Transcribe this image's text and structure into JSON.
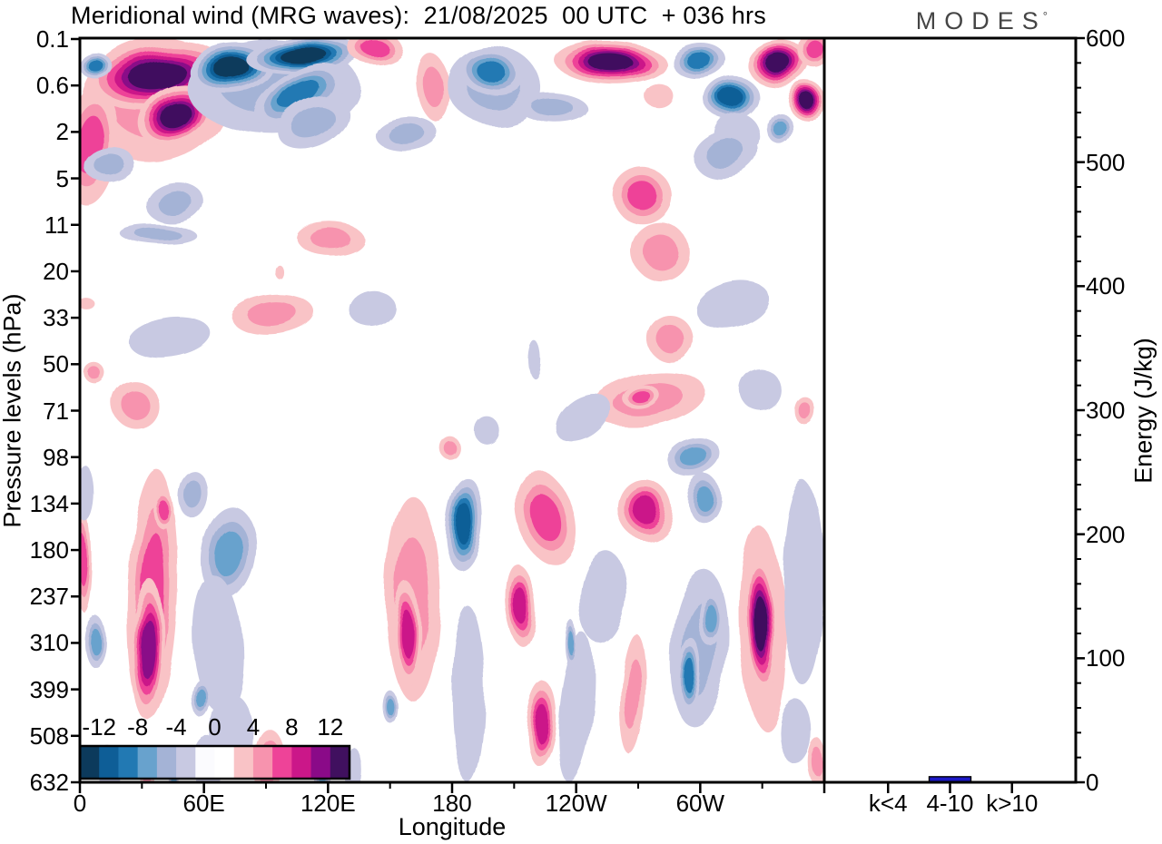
{
  "header": {
    "title": "Meridional wind (MRG waves):  21/08/2025  00 UTC  + 036 hrs",
    "logo": "MODES",
    "logo_mark": "°"
  },
  "axes": {
    "pressure": {
      "label": "Pressure levels (hPa)",
      "ticks": [
        "0.1",
        "0.6",
        "2",
        "5",
        "11",
        "20",
        "33",
        "50",
        "71",
        "98",
        "134",
        "180",
        "237",
        "310",
        "399",
        "508",
        "632"
      ]
    },
    "longitude": {
      "label": "Longitude",
      "major_ticks": [
        "0",
        "60E",
        "120E",
        "180",
        "120W",
        "60W"
      ],
      "major_interval_deg": 60,
      "minor_interval_deg": 30,
      "range_deg": [
        0,
        360
      ]
    },
    "energy": {
      "label": "Energy (J/kg)",
      "ticks": [
        "0",
        "100",
        "200",
        "300",
        "400",
        "500",
        "600"
      ],
      "major_interval": 100,
      "minor_interval": 20,
      "range": [
        0,
        600
      ]
    }
  },
  "colorbar": {
    "tick_labels": [
      "-12",
      "-8",
      "-4",
      "0",
      "4",
      "8",
      "12"
    ],
    "bin_edges": [
      -14,
      -12,
      -10,
      -8,
      -6,
      -4,
      -2,
      0,
      2,
      4,
      6,
      8,
      10,
      12,
      14
    ],
    "colors": [
      "#0c3a5c",
      "#0e5e97",
      "#2279b3",
      "#68a2cd",
      "#a4b3d6",
      "#c8c9e2",
      "#fbfbfe",
      "#ffffff",
      "#f9c3c6",
      "#f793ae",
      "#ee4398",
      "#cb1789",
      "#8a0a88",
      "#40105f"
    ]
  },
  "chart_data": [
    {
      "type": "heatmap",
      "title": "Meridional wind (MRG waves): 21/08/2025 00 UTC + 036 hrs",
      "xlabel": "Longitude",
      "ylabel": "Pressure levels (hPa)",
      "x_range_deg": [
        0,
        360
      ],
      "pressure_levels_hPa": [
        0.1,
        0.6,
        2,
        5,
        11,
        20,
        33,
        50,
        71,
        98,
        134,
        180,
        237,
        310,
        399,
        508,
        632
      ],
      "contour_interval": 2,
      "value_range": [
        -14,
        14
      ],
      "grid": false,
      "feature_format": [
        "lon_deg",
        "level_index",
        "rx_deg",
        "ry_levels",
        "peak_value",
        "rotation_deg"
      ],
      "features": [
        [
          36.0,
          1.31,
          36.0,
          1.35,
          5,
          -10
        ],
        [
          5.3,
          2.29,
          13.0,
          1.3,
          6,
          5
        ],
        [
          36.9,
          0.76,
          34.0,
          0.72,
          12.5,
          -8
        ],
        [
          45.7,
          1.62,
          19.0,
          0.62,
          13.7,
          -25
        ],
        [
          7.5,
          0.57,
          8.0,
          0.28,
          -9,
          0
        ],
        [
          93.0,
          1.02,
          42.0,
          1.0,
          -4,
          0
        ],
        [
          73.3,
          0.63,
          21.0,
          0.55,
          -12.7,
          -5
        ],
        [
          108.4,
          0.37,
          28.0,
          0.38,
          -13.5,
          -4
        ],
        [
          106.2,
          1.21,
          24.0,
          0.5,
          -8,
          -30
        ],
        [
          112.8,
          1.8,
          18.0,
          0.5,
          -4,
          -25
        ],
        [
          143.5,
          0.23,
          13.0,
          0.33,
          7,
          0
        ],
        [
          171.2,
          1.05,
          8.0,
          0.75,
          4,
          -8
        ],
        [
          157.6,
          2.03,
          15.0,
          0.35,
          -4,
          -5
        ],
        [
          14.9,
          2.73,
          12.0,
          0.35,
          -4,
          -10
        ],
        [
          45.7,
          3.52,
          14.0,
          0.45,
          -4,
          -8
        ],
        [
          200.6,
          1.02,
          23.0,
          0.85,
          -4,
          10
        ],
        [
          199.3,
          0.72,
          17.0,
          0.5,
          -9,
          15
        ],
        [
          256.4,
          0.49,
          27.0,
          0.46,
          13.7,
          2
        ],
        [
          299.4,
          0.47,
          13.0,
          0.38,
          -9,
          -5
        ],
        [
          338.0,
          0.53,
          15.0,
          0.48,
          13,
          -8
        ],
        [
          315.2,
          1.27,
          13.0,
          0.46,
          -11,
          -10
        ],
        [
          338.0,
          1.9,
          6.0,
          0.35,
          -6,
          0
        ],
        [
          317.9,
          2.09,
          11.0,
          0.5,
          -3,
          -20
        ],
        [
          351.2,
          1.31,
          9.5,
          0.4,
          12,
          0
        ],
        [
          355.6,
          0.23,
          8.0,
          0.4,
          7,
          0
        ],
        [
          280.1,
          1.23,
          7.0,
          0.26,
          3,
          0
        ],
        [
          272.2,
          3.38,
          14.0,
          0.6,
          7,
          -10
        ],
        [
          312.5,
          2.48,
          16.0,
          0.5,
          -5,
          -15
        ],
        [
          229.2,
          1.5,
          17.0,
          0.32,
          -4,
          3
        ],
        [
          121.2,
          4.3,
          16.0,
          0.35,
          5,
          0
        ],
        [
          38.2,
          4.22,
          19.0,
          0.22,
          -4,
          3
        ],
        [
          94.0,
          5.96,
          20.0,
          0.42,
          5,
          -5
        ],
        [
          142.2,
          5.84,
          11.0,
          0.38,
          -3,
          -10
        ],
        [
          43.5,
          6.43,
          20.0,
          0.42,
          -3,
          -8
        ],
        [
          280.5,
          4.57,
          14.0,
          0.62,
          5,
          10
        ],
        [
          316.1,
          5.74,
          18.0,
          0.48,
          -3,
          -15
        ],
        [
          284.9,
          6.43,
          11.0,
          0.5,
          5,
          10
        ],
        [
          274.8,
          7.76,
          28.0,
          0.56,
          5,
          -10
        ],
        [
          271.3,
          7.7,
          9.0,
          0.25,
          7,
          -10
        ],
        [
          243.7,
          8.17,
          15.0,
          0.45,
          -3,
          -35
        ],
        [
          297.6,
          9.03,
          13.0,
          0.4,
          -7,
          -15
        ],
        [
          350.3,
          7.99,
          5.0,
          0.3,
          5,
          0
        ],
        [
          3.0,
          5.69,
          4.0,
          0.12,
          3,
          0
        ],
        [
          7.5,
          7.21,
          5.0,
          0.22,
          5,
          0
        ],
        [
          27.2,
          7.89,
          12.0,
          0.5,
          4,
          55
        ],
        [
          178.7,
          8.79,
          5.0,
          0.25,
          4,
          0
        ],
        [
          196.7,
          8.42,
          6.0,
          0.3,
          -3,
          0
        ],
        [
          329.3,
          7.56,
          10.0,
          0.45,
          -3,
          -20
        ],
        [
          96.6,
          5.02,
          2.0,
          0.15,
          3,
          0
        ],
        [
          219.0,
          6.86,
          3.0,
          0.4,
          -3,
          0
        ],
        [
          35.1,
          11.96,
          12.0,
          2.7,
          6,
          2
        ],
        [
          32.9,
          13.13,
          8.0,
          1.5,
          11,
          2
        ],
        [
          40.4,
          10.14,
          5.0,
          0.4,
          7,
          0
        ],
        [
          54.9,
          9.81,
          7.0,
          0.5,
          -5,
          5
        ],
        [
          71.6,
          11.06,
          13.0,
          1.0,
          -6,
          8
        ],
        [
          66.7,
          13.03,
          12.0,
          1.5,
          -3,
          -4
        ],
        [
          73.3,
          14.98,
          10.0,
          0.9,
          -3,
          0
        ],
        [
          58.8,
          14.2,
          4.5,
          0.42,
          -7,
          0
        ],
        [
          161.1,
          12.05,
          13.0,
          2.2,
          5,
          0
        ],
        [
          158.9,
          12.83,
          6.5,
          1.1,
          9,
          0
        ],
        [
          149.7,
          14.36,
          3.5,
          0.35,
          -6,
          0
        ],
        [
          1.8,
          11.23,
          4.0,
          1.1,
          7,
          0
        ],
        [
          3.1,
          9.81,
          4.5,
          0.6,
          -3,
          0
        ],
        [
          7.0,
          12.95,
          5.5,
          0.55,
          -6,
          0
        ],
        [
          186.1,
          10.45,
          9.0,
          1.0,
          -10,
          4
        ],
        [
          189.2,
          13.26,
          4.5,
          0.75,
          -7,
          0
        ],
        [
          187.5,
          14.1,
          8.0,
          1.9,
          -3,
          0
        ],
        [
          225.2,
          10.3,
          14.0,
          1.05,
          6,
          -18
        ],
        [
          212.9,
          12.19,
          7.0,
          0.9,
          8,
          -5
        ],
        [
          223.0,
          14.73,
          7.0,
          0.9,
          9,
          4
        ],
        [
          273.5,
          10.14,
          13.0,
          0.65,
          9,
          -8
        ],
        [
          301.6,
          9.88,
          8.0,
          0.5,
          -7,
          5
        ],
        [
          253.3,
          12.03,
          11.0,
          1.0,
          -3,
          5
        ],
        [
          240.1,
          14.4,
          8.0,
          1.6,
          -3,
          6
        ],
        [
          238.0,
          13.03,
          3.0,
          0.5,
          -6,
          0
        ],
        [
          267.4,
          14.1,
          6.0,
          1.3,
          5,
          3
        ],
        [
          299.9,
          13.13,
          14.0,
          1.7,
          -4,
          4
        ],
        [
          295.0,
          13.71,
          5.5,
          0.8,
          -9,
          3
        ],
        [
          305.1,
          12.48,
          6.0,
          0.6,
          -6,
          0
        ],
        [
          330.1,
          12.68,
          11.0,
          2.2,
          5,
          -2
        ],
        [
          329.3,
          12.6,
          7.5,
          1.5,
          13.8,
          -3
        ],
        [
          349.5,
          11.7,
          10.0,
          2.2,
          -3,
          0
        ],
        [
          346.0,
          14.91,
          8.0,
          0.7,
          -3,
          0
        ],
        [
          356.9,
          15.57,
          4.5,
          0.5,
          5,
          0
        ],
        [
          14.0,
          15.73,
          5.5,
          0.5,
          -3,
          0
        ],
        [
          31.6,
          15.77,
          3.5,
          0.45,
          5,
          0
        ],
        [
          43.9,
          15.88,
          2.5,
          0.3,
          -6,
          0
        ],
        [
          61.5,
          15.61,
          7.0,
          0.6,
          -3,
          0
        ],
        [
          90.9,
          15.57,
          7.5,
          0.75,
          7,
          0
        ],
        [
          117.2,
          15.81,
          4.0,
          0.45,
          -6,
          0
        ],
        [
          132.6,
          15.77,
          4.5,
          0.5,
          -3,
          0
        ]
      ]
    },
    {
      "type": "bar",
      "categories": [
        "k<4",
        "4-10",
        "k>10"
      ],
      "values": [
        0,
        4.5,
        0
      ],
      "ylabel": "Energy (J/kg)",
      "ylim": [
        0,
        600
      ],
      "bar_color": "#1c19c7",
      "legend_position": "none"
    }
  ]
}
